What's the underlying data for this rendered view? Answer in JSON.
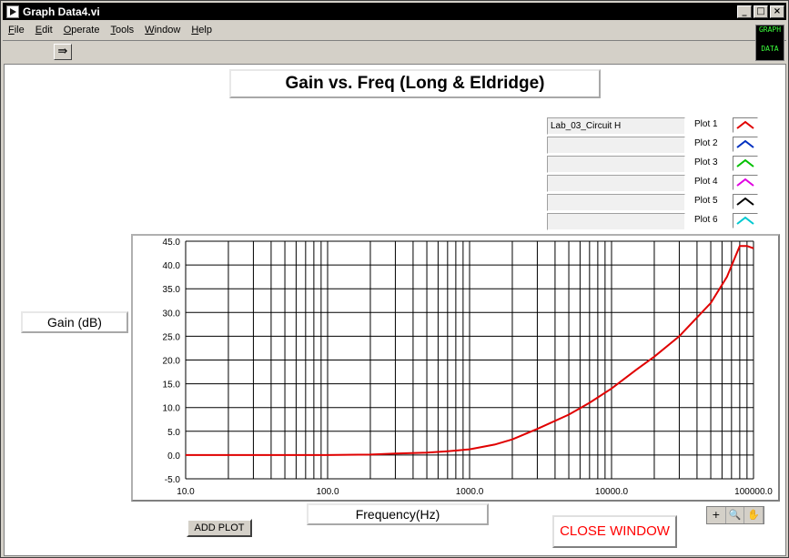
{
  "window": {
    "title": "Graph Data4.vi",
    "buttons": [
      "_",
      "□",
      "×"
    ]
  },
  "menu": [
    "File",
    "Edit",
    "Operate",
    "Tools",
    "Window",
    "Help"
  ],
  "toolbar": {
    "run_icon": "run-arrow-icon",
    "vi_icon_text": [
      "GRAPH",
      "DATA"
    ]
  },
  "graph": {
    "title": "Gain vs. Freq (Long & Eldridge)",
    "ylabel": "Gain (dB)",
    "xlabel": "Frequency(Hz)",
    "legend": [
      {
        "name": "Lab_03_Circuit H",
        "label": "Plot 1",
        "color": "#e00000"
      },
      {
        "name": "",
        "label": "Plot 2",
        "color": "#0030c0"
      },
      {
        "name": "",
        "label": "Plot 3",
        "color": "#00c000"
      },
      {
        "name": "",
        "label": "Plot 4",
        "color": "#e000e0"
      },
      {
        "name": "",
        "label": "Plot 5",
        "color": "#000000"
      },
      {
        "name": "",
        "label": "Plot 6",
        "color": "#00c8d0"
      }
    ]
  },
  "palette": [
    "+",
    "🔍",
    "✋"
  ],
  "buttons": {
    "add_plot": "ADD PLOT",
    "close_window": "CLOSE WINDOW"
  },
  "colors": {
    "close_text": "#ff0000",
    "trace": "#e00000"
  },
  "chart_data": {
    "type": "line",
    "title": "Gain vs. Freq (Long & Eldridge)",
    "xlabel": "Frequency(Hz)",
    "ylabel": "Gain (dB)",
    "xscale": "log",
    "xlim": [
      10,
      100000
    ],
    "ylim": [
      -5,
      45
    ],
    "x_ticks": [
      "10.0",
      "100.0",
      "1000.0",
      "10000.0",
      "100000.0"
    ],
    "y_ticks": [
      "-5.0",
      "0.0",
      "5.0",
      "10.0",
      "15.0",
      "20.0",
      "25.0",
      "30.0",
      "35.0",
      "40.0",
      "45.0"
    ],
    "grid": true,
    "series": [
      {
        "name": "Lab_03_Circuit H",
        "x": [
          10,
          50,
          100,
          200,
          300,
          500,
          700,
          1000,
          1500,
          2000,
          3000,
          5000,
          7000,
          10000,
          15000,
          20000,
          30000,
          50000,
          65000,
          75000,
          80000,
          90000,
          100000
        ],
        "y": [
          0,
          0,
          0,
          0.1,
          0.3,
          0.5,
          0.8,
          1.2,
          2.2,
          3.3,
          5.5,
          8.5,
          11,
          14,
          18,
          20.7,
          25,
          32,
          37.5,
          42,
          44,
          44,
          43.5
        ]
      }
    ]
  }
}
